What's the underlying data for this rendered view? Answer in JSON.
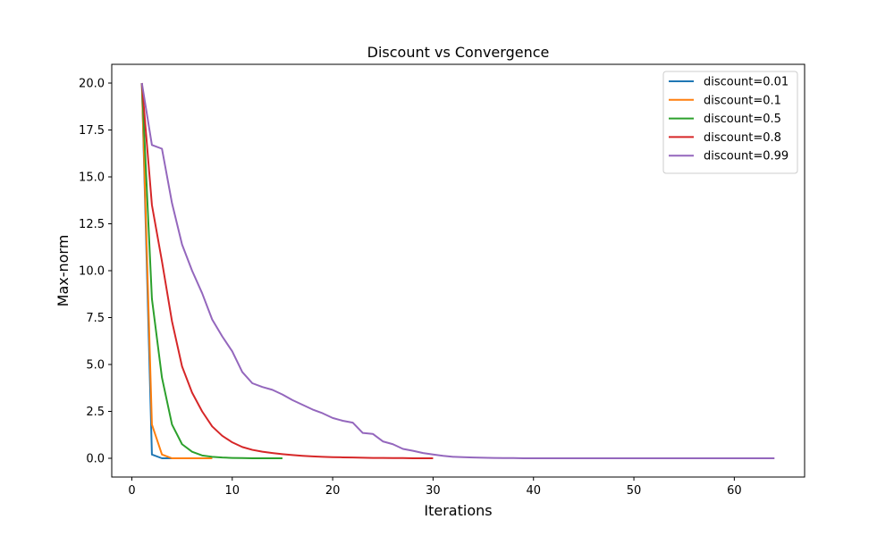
{
  "chart_data": {
    "type": "line",
    "title": "Discount vs Convergence",
    "xlabel": "Iterations",
    "ylabel": "Max-norm",
    "xlim": [
      -2,
      67
    ],
    "ylim": [
      -1.0,
      21.0
    ],
    "xticks": [
      0,
      10,
      20,
      30,
      40,
      50,
      60
    ],
    "yticks": [
      0.0,
      2.5,
      5.0,
      7.5,
      10.0,
      12.5,
      15.0,
      17.5,
      20.0
    ],
    "ytick_labels": [
      "0.0",
      "2.5",
      "5.0",
      "7.5",
      "10.0",
      "12.5",
      "15.0",
      "17.5",
      "20.0"
    ],
    "xtick_labels": [
      "0",
      "10",
      "20",
      "30",
      "40",
      "50",
      "60"
    ],
    "grid": false,
    "legend_position": "top-right",
    "series": [
      {
        "name": "discount=0.01",
        "color": "#1f77b4",
        "x": [
          1,
          2,
          3,
          4,
          5,
          6,
          7,
          8
        ],
        "y": [
          20.0,
          0.2,
          0.0,
          0.0,
          0.0,
          0.0,
          0.0,
          0.0
        ]
      },
      {
        "name": "discount=0.1",
        "color": "#ff7f0e",
        "x": [
          1,
          2,
          3,
          4,
          5,
          6,
          7,
          8
        ],
        "y": [
          20.0,
          1.8,
          0.2,
          0.0,
          0.0,
          0.0,
          0.0,
          0.0
        ]
      },
      {
        "name": "discount=0.5",
        "color": "#2ca02c",
        "x": [
          1,
          2,
          3,
          4,
          5,
          6,
          7,
          8,
          9,
          10,
          11,
          12,
          13,
          14,
          15
        ],
        "y": [
          20.0,
          8.5,
          4.3,
          1.8,
          0.75,
          0.35,
          0.15,
          0.08,
          0.04,
          0.02,
          0.01,
          0.0,
          0.0,
          0.0,
          0.0
        ]
      },
      {
        "name": "discount=0.8",
        "color": "#d62728",
        "x": [
          1,
          2,
          3,
          4,
          5,
          6,
          7,
          8,
          9,
          10,
          11,
          12,
          13,
          14,
          15,
          16,
          17,
          18,
          19,
          20,
          21,
          22,
          23,
          24,
          25,
          26,
          27,
          28,
          29,
          30
        ],
        "y": [
          20.0,
          13.5,
          10.5,
          7.3,
          4.9,
          3.5,
          2.5,
          1.7,
          1.2,
          0.85,
          0.6,
          0.45,
          0.35,
          0.28,
          0.22,
          0.17,
          0.13,
          0.1,
          0.08,
          0.06,
          0.05,
          0.04,
          0.03,
          0.02,
          0.015,
          0.01,
          0.01,
          0.0,
          0.0,
          0.0
        ]
      },
      {
        "name": "discount=0.99",
        "color": "#9467bd",
        "x": [
          1,
          2,
          3,
          4,
          5,
          6,
          7,
          8,
          9,
          10,
          11,
          12,
          13,
          14,
          15,
          16,
          17,
          18,
          19,
          20,
          21,
          22,
          23,
          24,
          25,
          26,
          27,
          28,
          29,
          30,
          31,
          32,
          33,
          34,
          35,
          36,
          37,
          38,
          39,
          40,
          41,
          42,
          43,
          44,
          45,
          46,
          47,
          48,
          49,
          50,
          51,
          52,
          53,
          54,
          55,
          56,
          57,
          58,
          59,
          60,
          61,
          62,
          63,
          64
        ],
        "y": [
          20.0,
          16.7,
          16.5,
          13.6,
          11.4,
          10.0,
          8.8,
          7.4,
          6.5,
          5.7,
          4.6,
          4.0,
          3.8,
          3.65,
          3.4,
          3.1,
          2.85,
          2.6,
          2.4,
          2.15,
          2.0,
          1.9,
          1.35,
          1.3,
          0.9,
          0.75,
          0.5,
          0.4,
          0.28,
          0.2,
          0.13,
          0.08,
          0.06,
          0.04,
          0.03,
          0.02,
          0.01,
          0.01,
          0.0,
          0.0,
          0.0,
          0.0,
          0.0,
          0.0,
          0.0,
          0.0,
          0.0,
          0.0,
          0.0,
          0.0,
          0.0,
          0.0,
          0.0,
          0.0,
          0.0,
          0.0,
          0.0,
          0.0,
          0.0,
          0.0,
          0.0,
          0.0,
          0.0,
          0.0
        ]
      }
    ]
  }
}
